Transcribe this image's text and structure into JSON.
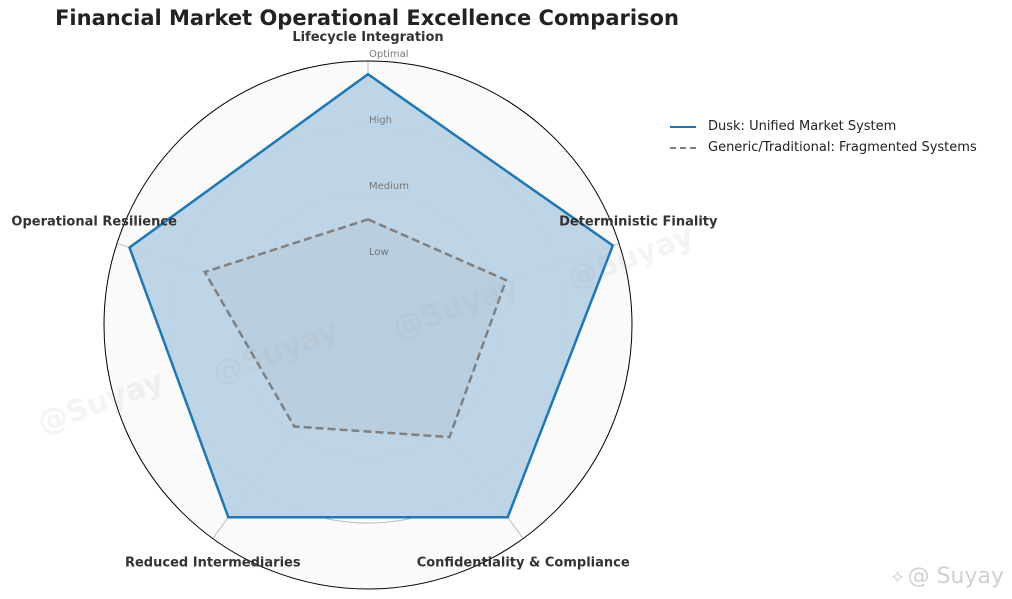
{
  "chart_data": {
    "type": "radar",
    "title": "Financial Market Operational Excellence Comparison",
    "axes": [
      "Lifecycle Integration",
      "Deterministic Finality",
      "Confidentiality & Compliance",
      "Reduced Intermediaries",
      "Operational Resilience"
    ],
    "levels": [
      {
        "value": 1,
        "label": "Low"
      },
      {
        "value": 2,
        "label": "Medium"
      },
      {
        "value": 3,
        "label": "High"
      },
      {
        "value": 4,
        "label": "Optimal"
      }
    ],
    "rlim": [
      0,
      4
    ],
    "series": [
      {
        "name": "Dusk: Unified Market System",
        "values": [
          3.8,
          3.9,
          3.6,
          3.6,
          3.8
        ],
        "color": "#1f77b4",
        "fill": "#b9d3e6",
        "style": "solid"
      },
      {
        "name": "Generic/Traditional: Fragmented Systems",
        "values": [
          1.6,
          2.2,
          2.1,
          1.9,
          2.6
        ],
        "color": "#808080",
        "style": "dashed"
      }
    ],
    "legend_position": "top-right"
  },
  "watermark": {
    "text": "@Suyay",
    "brand": "@ Suyay",
    "brand_icon": "logo-icon"
  }
}
